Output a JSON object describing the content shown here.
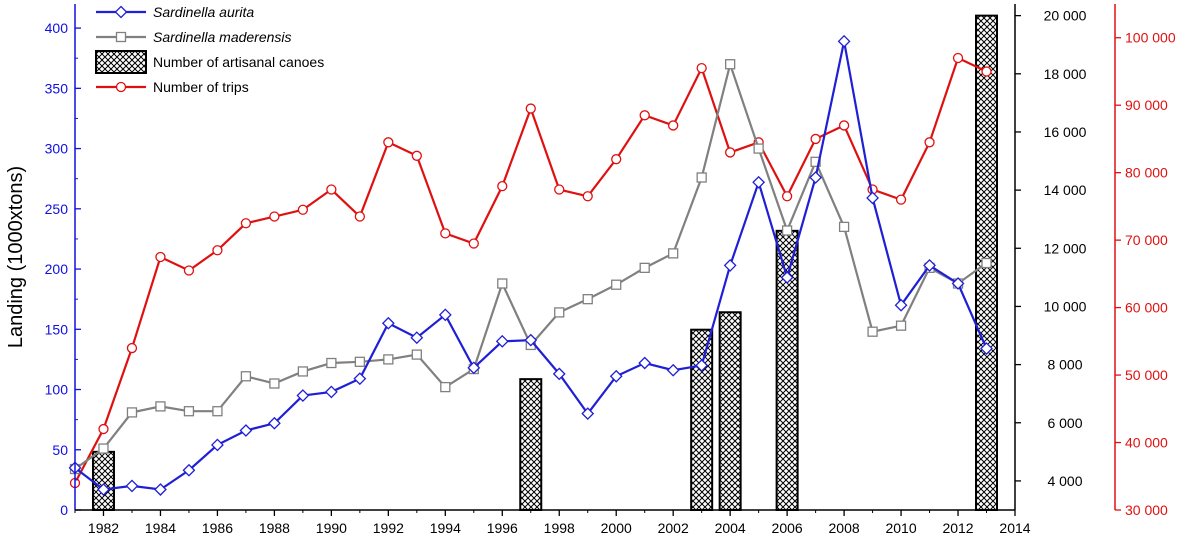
{
  "colors": {
    "aurita": "#1f1fd6",
    "maderensis": "#808080",
    "trips": "#e01010",
    "canoes": "#000000",
    "left_axis": "#1010e0",
    "right_axis": "#e01010",
    "mid_axis": "#000000"
  },
  "chart_data": {
    "type": "line",
    "xlabel": "",
    "ylabel": "Landing (1000xtons)",
    "x_ticks": [
      "1982",
      "1984",
      "1986",
      "1988",
      "1990",
      "1992",
      "1994",
      "1996",
      "1998",
      "2000",
      "2002",
      "2004",
      "2006",
      "2008",
      "2010",
      "2012",
      "2014"
    ],
    "xlim": [
      1981,
      2014
    ],
    "left_axis": {
      "ylim": [
        0,
        420
      ],
      "ticks": [
        "0",
        "50",
        "100",
        "150",
        "200",
        "250",
        "300",
        "350",
        "400"
      ]
    },
    "mid_axis": {
      "ylim": [
        3000,
        20400
      ],
      "ticks": [
        "4 000",
        "6 000",
        "8 000",
        "10 000",
        "12 000",
        "14 000",
        "16 000",
        "18 000",
        "20 000"
      ]
    },
    "right_axis": {
      "ylim": [
        30000,
        105000
      ],
      "ticks": [
        "30 000",
        "40 000",
        "50 000",
        "60 000",
        "70 000",
        "80 000",
        "90 000",
        "100 000"
      ]
    },
    "legend": {
      "position": "top-left",
      "entries": [
        "Sardinella aurita",
        "Sardinella maderensis",
        "Number of artisanal canoes",
        "Number of trips"
      ]
    },
    "series": [
      {
        "name": "Sardinella aurita",
        "axis": "left",
        "marker": "diamond",
        "x": [
          1981,
          1982,
          1983,
          1984,
          1985,
          1986,
          1987,
          1988,
          1989,
          1990,
          1991,
          1992,
          1993,
          1994,
          1995,
          1996,
          1997,
          1998,
          1999,
          2000,
          2001,
          2002,
          2003,
          2004,
          2005,
          2006,
          2007,
          2008,
          2009,
          2010,
          2011,
          2012,
          2013
        ],
        "y": [
          35,
          17,
          20,
          17,
          33,
          54,
          66,
          72,
          95,
          98,
          109,
          155,
          143,
          162,
          118,
          140,
          141,
          113,
          80,
          111,
          122,
          116,
          120,
          203,
          272,
          193,
          276,
          389,
          259,
          170,
          203,
          188,
          134
        ]
      },
      {
        "name": "Sardinella maderensis",
        "axis": "left",
        "marker": "square",
        "x": [
          1981,
          1982,
          1983,
          1984,
          1985,
          1986,
          1987,
          1988,
          1989,
          1990,
          1991,
          1992,
          1993,
          1994,
          1995,
          1996,
          1997,
          1998,
          1999,
          2000,
          2001,
          2002,
          2003,
          2004,
          2005,
          2006,
          2007,
          2008,
          2009,
          2010,
          2011,
          2012,
          2013
        ],
        "y": [
          34,
          51,
          81,
          86,
          82,
          82,
          111,
          105,
          115,
          122,
          123,
          125,
          129,
          102,
          117,
          188,
          137,
          164,
          175,
          187,
          201,
          213,
          276,
          370,
          300,
          232,
          289,
          235,
          148,
          153,
          201,
          188,
          205
        ]
      },
      {
        "name": "Number of artisanal canoes",
        "axis": "mid",
        "type": "bar",
        "x": [
          1982,
          1997,
          2003,
          2004,
          2006,
          2013
        ],
        "y": [
          5000,
          7500,
          9200,
          9800,
          12600,
          20000
        ]
      },
      {
        "name": "Number of trips",
        "axis": "right",
        "marker": "circle",
        "x": [
          1981,
          1982,
          1983,
          1984,
          1985,
          1986,
          1987,
          1988,
          1989,
          1990,
          1991,
          1992,
          1993,
          1994,
          1995,
          1996,
          1997,
          1998,
          1999,
          2000,
          2001,
          2002,
          2003,
          2004,
          2005,
          2006,
          2007,
          2008,
          2009,
          2010,
          2011,
          2012,
          2013
        ],
        "y": [
          34000,
          42000,
          54000,
          67500,
          65500,
          68500,
          72500,
          73500,
          74500,
          77500,
          73500,
          84500,
          82500,
          71000,
          69500,
          78000,
          89500,
          77500,
          76500,
          82000,
          88500,
          87000,
          95500,
          83000,
          84500,
          76500,
          85000,
          87000,
          77500,
          76000,
          84500,
          97000,
          95000
        ]
      }
    ]
  }
}
